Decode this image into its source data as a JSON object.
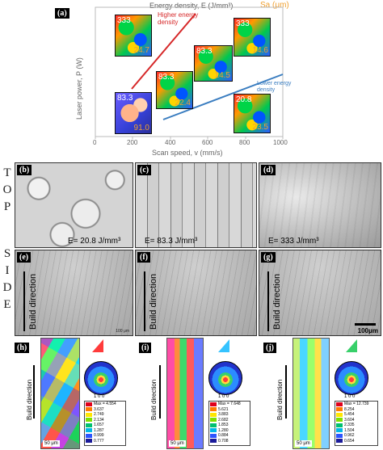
{
  "panel_a": {
    "tag": "(a)",
    "header_energy": "Energy density, E (J/mm³)",
    "header_sa": "Sa (μm)",
    "higher_label": "Higher energy density",
    "lower_label": "Lower energy density",
    "x_axis_label": "Scan speed, v (mm/s)",
    "y_axis_label": "Laser power, P (W)",
    "x_ticks": [
      "0",
      "200",
      "400",
      "600",
      "800",
      "1000"
    ],
    "insets": [
      {
        "energy": "333",
        "sa": "24.7"
      },
      {
        "energy": "83.3",
        "sa": "22.4"
      },
      {
        "energy": "83.3",
        "sa": "14.5"
      },
      {
        "energy": "333",
        "sa": "14.6"
      },
      {
        "energy": "83.3",
        "sa": "91.0"
      },
      {
        "energy": "20.8",
        "sa": "23.5"
      }
    ],
    "colors": {
      "higher_line": "#d62728",
      "lower_line": "#3a7dc0",
      "energy_text": "#ffffff",
      "sa_text": "#f0a030"
    }
  },
  "row_labels": {
    "top": [
      "T",
      "O",
      "P"
    ],
    "side": [
      "S",
      "I",
      "D",
      "E"
    ]
  },
  "top_panels": [
    {
      "tag": "(b)",
      "energy_label": "E= 20.8 J/mm³"
    },
    {
      "tag": "(c)",
      "energy_label": "E= 83.3 J/mm³"
    },
    {
      "tag": "(d)",
      "energy_label": "E= 333 J/mm³"
    }
  ],
  "side_panels": [
    {
      "tag": "(e)",
      "build": "Build direction",
      "scale": "100 μm"
    },
    {
      "tag": "(f)",
      "build": "Build direction"
    },
    {
      "tag": "(g)",
      "build": "Build direction",
      "scale": "100μm"
    }
  ],
  "ebsd_panels": [
    {
      "tag": "(h)",
      "build": "Build direction",
      "scale": "50 μm",
      "pole_caption": "1 0 0",
      "legend": [
        "Max = 4.554",
        "3.637",
        "2.749",
        "2.134",
        "1.657",
        "1.287",
        "0.999",
        "0.777"
      ]
    },
    {
      "tag": "(i)",
      "build": "Build direction",
      "scale": "50 μm",
      "pole_caption": "1 0 0",
      "legend": [
        "Max = 7.648",
        "5.621",
        "3.883",
        "2.682",
        "1.853",
        "1.280",
        "0.884",
        "0.708"
      ]
    },
    {
      "tag": "(j)",
      "build": "Build direction",
      "scale": "50 μm",
      "pole_caption": "1 0 0",
      "legend": [
        "Max = 12.739",
        "8.254",
        "5.454",
        "3.604",
        "2.335",
        "1.504",
        "0.962",
        "0.654"
      ]
    }
  ],
  "legend_colors": [
    "#e0001b",
    "#ff7a00",
    "#ffe600",
    "#7fe000",
    "#00c070",
    "#00b8e8",
    "#2c54ff",
    "#1a1a9a"
  ]
}
